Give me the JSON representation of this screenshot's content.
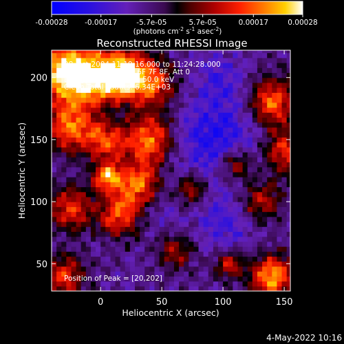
{
  "chart_data": {
    "type": "heatmap",
    "title": "Reconstructed RHESSI Image",
    "xlabel": "Heliocentric X (arcsec)",
    "ylabel": "Heliocentric Y (arcsec)",
    "xlim": [
      -40,
      155
    ],
    "ylim": [
      28,
      222
    ],
    "x_ticks": [
      0,
      50,
      100,
      150
    ],
    "y_ticks": [
      50,
      100,
      150,
      200
    ],
    "colorbar": {
      "min": -0.00028,
      "max": 0.00028,
      "tick_values": [
        -0.00028,
        -0.00017,
        -5.7e-05,
        5.7e-05,
        0.00017,
        0.00028
      ],
      "tick_labels": [
        "-0.00028",
        "-0.00017",
        "-5.7e-05",
        "5.7e-05",
        "0.00017",
        "0.00028"
      ],
      "unit_label_pre": "(photons cm",
      "unit_exp1": "-2",
      "unit_mid": " s",
      "unit_exp2": "-1",
      "unit_mid2": " asec",
      "unit_exp3": "-2",
      "unit_post": ")"
    },
    "annotations": {
      "time": "28-Oct-2004 11:19:16.000 to 11:24:28.000",
      "detectors": "Detectors: 3F 4F 5F 6F 7F 8F, Att 0",
      "energy": "Energy Range: 30.0 - 50.0 keV",
      "method": "Clean    Total counts: 6.34E+03",
      "peak": "Position of Peak = [20,202]"
    },
    "grid": {
      "nx": 50,
      "ny": 50,
      "cell_arcsec": 4.0,
      "note_values": "values in photons cm^-2 s^-1 asec^-2",
      "hotspots": [
        {
          "x": -30,
          "y": 205,
          "v": 0.00028,
          "r": 16
        },
        {
          "x": -5,
          "y": 200,
          "v": 0.00022,
          "r": 18
        },
        {
          "x": 20,
          "y": 202,
          "v": 0.00028,
          "r": 14
        },
        {
          "x": 45,
          "y": 195,
          "v": 0.00015,
          "r": 14
        },
        {
          "x": -25,
          "y": 160,
          "v": 0.00022,
          "r": 14
        },
        {
          "x": 5,
          "y": 150,
          "v": 0.00018,
          "r": 12
        },
        {
          "x": 40,
          "y": 150,
          "v": 0.00024,
          "r": 14
        },
        {
          "x": 30,
          "y": 115,
          "v": 0.00022,
          "r": 12
        },
        {
          "x": 5,
          "y": 120,
          "v": 0.00026,
          "r": 8
        },
        {
          "x": 15,
          "y": 90,
          "v": 0.0002,
          "r": 12
        },
        {
          "x": -25,
          "y": 95,
          "v": 0.00018,
          "r": 12
        },
        {
          "x": -30,
          "y": 40,
          "v": 0.00016,
          "r": 12
        },
        {
          "x": 75,
          "y": 110,
          "v": 0.00012,
          "r": 10
        },
        {
          "x": 110,
          "y": 130,
          "v": 0.00015,
          "r": 10
        },
        {
          "x": 140,
          "y": 180,
          "v": 0.00022,
          "r": 14
        },
        {
          "x": 150,
          "y": 140,
          "v": 0.00018,
          "r": 12
        },
        {
          "x": 130,
          "y": 100,
          "v": 0.00015,
          "r": 12
        },
        {
          "x": 140,
          "y": 40,
          "v": 0.00028,
          "r": 12
        },
        {
          "x": 105,
          "y": 50,
          "v": 0.00014,
          "r": 8
        },
        {
          "x": 60,
          "y": 60,
          "v": 0.0001,
          "r": 10
        }
      ],
      "coldspots": [
        {
          "x": 95,
          "y": 150,
          "v": -0.00024,
          "r": 26
        },
        {
          "x": 105,
          "y": 85,
          "v": -0.00018,
          "r": 18
        },
        {
          "x": 10,
          "y": 170,
          "v": -0.00014,
          "r": 12
        },
        {
          "x": 55,
          "y": 90,
          "v": -0.00012,
          "r": 12
        },
        {
          "x": 60,
          "y": 210,
          "v": -0.0001,
          "r": 12
        },
        {
          "x": 100,
          "y": 200,
          "v": -0.00016,
          "r": 14
        }
      ]
    }
  },
  "footer": {
    "date": "4-May-2022 10:16"
  }
}
